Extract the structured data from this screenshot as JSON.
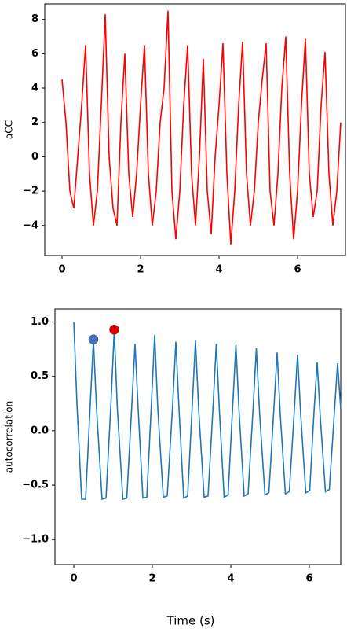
{
  "chart_data": [
    {
      "type": "line",
      "ylabel": "aCC",
      "x": [
        0,
        0.1,
        0.2,
        0.3,
        0.4,
        0.5,
        0.6,
        0.7,
        0.8,
        0.9,
        1.0,
        1.1,
        1.2,
        1.3,
        1.4,
        1.5,
        1.6,
        1.7,
        1.8,
        1.9,
        2.0,
        2.1,
        2.2,
        2.3,
        2.4,
        2.5,
        2.6,
        2.7,
        2.8,
        2.9,
        3.0,
        3.1,
        3.2,
        3.3,
        3.4,
        3.5,
        3.6,
        3.7,
        3.8,
        3.9,
        4.0,
        4.1,
        4.2,
        4.3,
        4.4,
        4.5,
        4.6,
        4.7,
        4.8,
        4.9,
        5.0,
        5.1,
        5.2,
        5.3,
        5.4,
        5.5,
        5.6,
        5.7,
        5.8,
        5.9,
        6.0,
        6.1,
        6.2,
        6.3,
        6.4,
        6.5,
        6.6,
        6.7,
        6.8,
        6.9,
        7.0,
        7.1
      ],
      "series": [
        {
          "color": "#ff0000",
          "values": [
            4.5,
            2,
            -2,
            -3,
            0,
            3,
            6.5,
            -1,
            -4,
            -2,
            3,
            8.3,
            0,
            -3,
            -4,
            2,
            6,
            -1,
            -3.5,
            -1,
            3,
            6.5,
            -1,
            -4,
            -2,
            2,
            4,
            8.5,
            -2,
            -4.8,
            -2,
            3,
            6.5,
            -1,
            -4,
            0,
            5.7,
            -2,
            -4.5,
            0,
            3,
            6.6,
            -1,
            -5.1,
            -2,
            3,
            6.7,
            -1,
            -4,
            -2,
            2,
            4.5,
            6.6,
            -2,
            -4,
            -1,
            4,
            7,
            -1,
            -4.8,
            -2,
            3,
            6.9,
            -1,
            -3.5,
            -2,
            3,
            6.1,
            -1,
            -4,
            -2,
            2
          ]
        }
      ],
      "xlim": [
        -0.44,
        7.22
      ],
      "ylim": [
        -5.75,
        8.9
      ],
      "xticks": [
        0,
        2,
        4,
        6
      ],
      "yticks": [
        {
          "value": -4,
          "label": "−4"
        },
        {
          "value": -2,
          "label": "−2"
        },
        0,
        2,
        4,
        6,
        8
      ]
    },
    {
      "type": "line",
      "ylabel": "autocorrelation",
      "xlabel": "Time (s)",
      "x": [
        0,
        0.08,
        0.2,
        0.3,
        0.42,
        0.5,
        0.58,
        0.72,
        0.82,
        0.95,
        1.03,
        1.11,
        1.25,
        1.35,
        1.48,
        1.56,
        1.64,
        1.76,
        1.86,
        1.98,
        2.06,
        2.14,
        2.28,
        2.38,
        2.52,
        2.6,
        2.68,
        2.8,
        2.9,
        3.02,
        3.1,
        3.18,
        3.32,
        3.42,
        3.55,
        3.63,
        3.71,
        3.83,
        3.93,
        4.05,
        4.13,
        4.21,
        4.34,
        4.44,
        4.57,
        4.65,
        4.73,
        4.87,
        4.97,
        5.1,
        5.18,
        5.26,
        5.39,
        5.49,
        5.62,
        5.7,
        5.78,
        5.91,
        6.01,
        6.12,
        6.2,
        6.28,
        6.41,
        6.51,
        6.64,
        6.72,
        6.8
      ],
      "series": [
        {
          "color": "#1f77b4",
          "values": [
            1.0,
            0.25,
            -0.63,
            -0.63,
            0.25,
            0.83,
            0.2,
            -0.63,
            -0.62,
            0.28,
            0.92,
            0.2,
            -0.63,
            -0.62,
            0.25,
            0.8,
            0.2,
            -0.62,
            -0.61,
            0.27,
            0.88,
            0.2,
            -0.61,
            -0.6,
            0.25,
            0.82,
            0.2,
            -0.62,
            -0.6,
            0.25,
            0.83,
            0.2,
            -0.61,
            -0.6,
            0.24,
            0.8,
            0.18,
            -0.61,
            -0.59,
            0.24,
            0.79,
            0.18,
            -0.6,
            -0.58,
            0.22,
            0.76,
            0.18,
            -0.59,
            -0.57,
            0.22,
            0.72,
            0.15,
            -0.58,
            -0.56,
            0.2,
            0.7,
            0.15,
            -0.57,
            -0.55,
            0.18,
            0.63,
            0.12,
            -0.56,
            -0.54,
            0.18,
            0.62,
            0.2
          ]
        }
      ],
      "markers": [
        {
          "x": 0.5,
          "y": 0.84,
          "color": "#4472c4"
        },
        {
          "x": 1.03,
          "y": 0.93,
          "color": "#e00000"
        }
      ],
      "xlim": [
        -0.48,
        6.8
      ],
      "ylim": [
        -1.23,
        1.12
      ],
      "xticks": [
        0,
        2,
        4,
        6
      ],
      "yticks": [
        {
          "value": -1,
          "label": "−1.0"
        },
        {
          "value": -0.5,
          "label": "−0.5"
        },
        {
          "value": 0,
          "label": "0.0"
        },
        0.5,
        {
          "value": 1,
          "label": "1.0"
        }
      ]
    }
  ]
}
